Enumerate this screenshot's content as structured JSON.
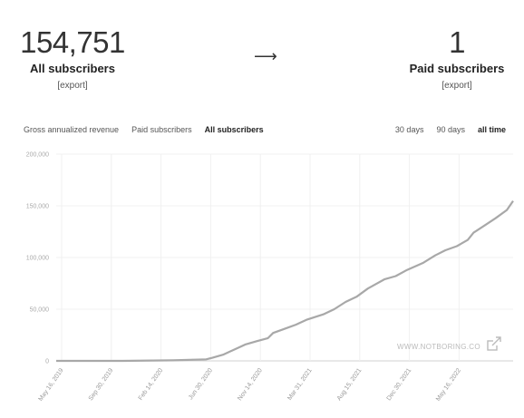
{
  "stats": {
    "all": {
      "value": "154,751",
      "label": "All subscribers",
      "export": "[export]"
    },
    "arrow": "⟶",
    "paid": {
      "value": "1",
      "label": "Paid subscribers",
      "export": "[export]"
    }
  },
  "metric_tabs": [
    {
      "label": "Gross annualized revenue",
      "active": false
    },
    {
      "label": "Paid subscribers",
      "active": false
    },
    {
      "label": "All subscribers",
      "active": true
    }
  ],
  "range_tabs": [
    {
      "label": "30 days",
      "active": false
    },
    {
      "label": "90 days",
      "active": false
    },
    {
      "label": "all time",
      "active": true
    }
  ],
  "watermark": "WWW.NOTBORING.CO",
  "colors": {
    "line": "#a8a8a8",
    "grid": "#f0f0f0",
    "axis": "#d0d0d0"
  },
  "chart_data": {
    "type": "line",
    "title": "",
    "xlabel": "",
    "ylabel": "",
    "ylim": [
      0,
      200000
    ],
    "yticks": [
      "0",
      "50,000",
      "100,000",
      "150,000",
      "200,000"
    ],
    "xticks": [
      "May 16, 2019",
      "Sep 30, 2019",
      "Feb 14, 2020",
      "Jun 30, 2020",
      "Nov 14, 2020",
      "Mar 31, 2021",
      "Aug 15, 2021",
      "Dec 30, 2021",
      "May 16, 2022"
    ],
    "series": [
      {
        "x": [
          "2019-04-01",
          "2019-09-30",
          "2020-02-14",
          "2020-05-15",
          "2020-06-01",
          "2020-06-30",
          "2020-07-31",
          "2020-08-31",
          "2020-09-30",
          "2020-10-31",
          "2020-11-14",
          "2020-12-15",
          "2021-01-15",
          "2021-02-15",
          "2021-03-31",
          "2021-04-30",
          "2021-05-31",
          "2021-06-30",
          "2021-07-31",
          "2021-08-15",
          "2021-09-15",
          "2021-10-15",
          "2021-11-15",
          "2021-12-30",
          "2022-01-31",
          "2022-02-28",
          "2022-03-31",
          "2022-04-30",
          "2022-05-16",
          "2022-06-15",
          "2022-07-15",
          "2022-08-15",
          "2022-09-01"
        ],
        "values": [
          0,
          0,
          500,
          1500,
          3000,
          6000,
          11000,
          16000,
          19000,
          22000,
          27000,
          31000,
          35000,
          40000,
          45000,
          50000,
          57000,
          62000,
          70000,
          73000,
          79000,
          82000,
          88000,
          95000,
          102000,
          107000,
          111000,
          117000,
          124000,
          131000,
          138000,
          146000,
          154751
        ]
      }
    ]
  }
}
